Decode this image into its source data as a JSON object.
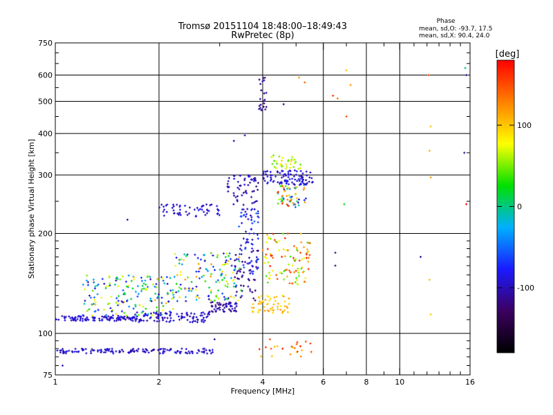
{
  "chart_data": {
    "type": "scatter",
    "title": "Tromsø 20151104 18:48:00–18:49:43",
    "subtitle": "RwPretec (8p)",
    "xlabel": "Frequency [MHz]",
    "ylabel": "Stationary phase Virtual Height [km]",
    "x_scale": "log",
    "y_scale": "log",
    "xlim": [
      1,
      16
    ],
    "ylim": [
      75,
      750
    ],
    "x_ticks": [
      {
        "value": 1,
        "label": "1"
      },
      {
        "value": 2,
        "label": "2"
      },
      {
        "value": 4,
        "label": "4"
      },
      {
        "value": 6,
        "label": "6"
      },
      {
        "value": 8,
        "label": "8"
      },
      {
        "value": 10,
        "label": "10"
      },
      {
        "value": 16,
        "label": "16"
      }
    ],
    "y_ticks": [
      {
        "value": 75,
        "label": "75"
      },
      {
        "value": 100,
        "label": "100"
      },
      {
        "value": 200,
        "label": "200"
      },
      {
        "value": 300,
        "label": "300"
      },
      {
        "value": 400,
        "label": "400"
      },
      {
        "value": 500,
        "label": "500"
      },
      {
        "value": 600,
        "label": "600"
      },
      {
        "value": 750,
        "label": "750"
      }
    ],
    "x_gridlines": [
      2,
      4,
      6,
      8,
      10
    ],
    "y_gridlines": [
      100,
      200,
      300,
      400,
      500,
      600
    ],
    "grid": true,
    "stats": {
      "title": "Phase",
      "line_o": "mean, sd,O: -93.7, 17.5",
      "line_x": "mean, sd,X:  90.4, 24.0"
    },
    "colorbar": {
      "label": "[deg]",
      "range": [
        -180,
        180
      ],
      "ticks": [
        {
          "value": 100,
          "label": "100"
        },
        {
          "value": 0,
          "label": "0"
        },
        {
          "value": -100,
          "label": "-100"
        }
      ],
      "colors": [
        "#000000",
        "#3c0060",
        "#1a1aff",
        "#00b0ff",
        "#00e000",
        "#ffff00",
        "#ff8000",
        "#ff0000"
      ]
    },
    "segments": [
      {
        "name": "",
        "x_range": [
          1.0,
          1.7
        ],
        "y_range": [
          109,
          113
        ],
        "phase_range": [
          -110,
          -80
        ],
        "count": 110
      },
      {
        "name": "",
        "x_range": [
          1.7,
          2.8
        ],
        "y_range": [
          108,
          116
        ],
        "phase_range": [
          -110,
          -80
        ],
        "count": 100
      },
      {
        "name": "",
        "x_range": [
          2.8,
          3.4
        ],
        "y_range": [
          116,
          125
        ],
        "phase_range": [
          -120,
          -90
        ],
        "count": 55
      },
      {
        "name": "",
        "x_range": [
          3.3,
          3.9
        ],
        "y_range": [
          125,
          180
        ],
        "phase_range": [
          -130,
          -100
        ],
        "count": 45
      },
      {
        "name": "",
        "x_range": [
          1.0,
          1.9
        ],
        "y_range": [
          87,
          90
        ],
        "phase_range": [
          -110,
          -80
        ],
        "count": 85
      },
      {
        "name": "",
        "x_range": [
          1.9,
          2.9
        ],
        "y_range": [
          87,
          90
        ],
        "phase_range": [
          -110,
          -80
        ],
        "count": 55
      },
      {
        "name": "",
        "x_range": [
          1.2,
          2.2
        ],
        "y_range": [
          113,
          150
        ],
        "phase_range": [
          -110,
          110
        ],
        "count": 170
      },
      {
        "name": "",
        "x_range": [
          2.2,
          3.5
        ],
        "y_range": [
          125,
          175
        ],
        "phase_range": [
          -110,
          120
        ],
        "count": 140
      },
      {
        "name": "",
        "x_range": [
          2.0,
          3.0
        ],
        "y_range": [
          225,
          245
        ],
        "phase_range": [
          -110,
          -80
        ],
        "count": 55
      },
      {
        "name": "",
        "x_range": [
          3.1,
          3.9
        ],
        "y_range": [
          240,
          300
        ],
        "phase_range": [
          -115,
          -85
        ],
        "count": 55
      },
      {
        "name": "",
        "x_range": [
          3.4,
          3.9
        ],
        "y_range": [
          150,
          240
        ],
        "phase_range": [
          -110,
          -50
        ],
        "count": 70
      },
      {
        "name": "",
        "x_range": [
          4.0,
          5.6
        ],
        "y_range": [
          280,
          310
        ],
        "phase_range": [
          -110,
          -70
        ],
        "count": 95
      },
      {
        "name": "",
        "x_range": [
          4.4,
          5.4
        ],
        "y_range": [
          240,
          280
        ],
        "phase_range": [
          -110,
          170
        ],
        "count": 60
      },
      {
        "name": "",
        "x_range": [
          4.0,
          5.5
        ],
        "y_range": [
          140,
          200
        ],
        "phase_range": [
          30,
          170
        ],
        "count": 100
      },
      {
        "name": "",
        "x_range": [
          3.7,
          4.8
        ],
        "y_range": [
          115,
          130
        ],
        "phase_range": [
          80,
          120
        ],
        "count": 55
      },
      {
        "name": "",
        "x_range": [
          4.2,
          5.2
        ],
        "y_range": [
          310,
          345
        ],
        "phase_range": [
          40,
          100
        ],
        "count": 35
      },
      {
        "name": "",
        "x_range": [
          3.9,
          4.1
        ],
        "y_range": [
          470,
          590
        ],
        "phase_range": [
          -120,
          -100
        ],
        "count": 22
      },
      {
        "name": "",
        "x_range": [
          3.9,
          5.6
        ],
        "y_range": [
          85,
          95
        ],
        "phase_range": [
          90,
          170
        ],
        "count": 22
      }
    ],
    "points": [
      {
        "x": 1.62,
        "y": 220,
        "phase": -105
      },
      {
        "x": 5.1,
        "y": 590,
        "phase": 120
      },
      {
        "x": 5.3,
        "y": 570,
        "phase": 140
      },
      {
        "x": 3.55,
        "y": 395,
        "phase": -100
      },
      {
        "x": 3.3,
        "y": 380,
        "phase": -100
      },
      {
        "x": 4.6,
        "y": 490,
        "phase": -110
      },
      {
        "x": 6.4,
        "y": 520,
        "phase": 160
      },
      {
        "x": 6.6,
        "y": 510,
        "phase": 130
      },
      {
        "x": 7.0,
        "y": 620,
        "phase": 100
      },
      {
        "x": 7.0,
        "y": 450,
        "phase": 150
      },
      {
        "x": 7.2,
        "y": 560,
        "phase": 120
      },
      {
        "x": 6.9,
        "y": 245,
        "phase": 20
      },
      {
        "x": 6.5,
        "y": 175,
        "phase": -110
      },
      {
        "x": 6.5,
        "y": 160,
        "phase": -120
      },
      {
        "x": 11.5,
        "y": 170,
        "phase": -110
      },
      {
        "x": 12.1,
        "y": 600,
        "phase": 150
      },
      {
        "x": 12.3,
        "y": 420,
        "phase": 100
      },
      {
        "x": 12.2,
        "y": 355,
        "phase": 110
      },
      {
        "x": 12.3,
        "y": 295,
        "phase": 115
      },
      {
        "x": 12.2,
        "y": 145,
        "phase": 100
      },
      {
        "x": 12.3,
        "y": 114,
        "phase": 95
      },
      {
        "x": 15.5,
        "y": 630,
        "phase": -5
      },
      {
        "x": 15.6,
        "y": 600,
        "phase": -110
      },
      {
        "x": 15.4,
        "y": 350,
        "phase": -115
      },
      {
        "x": 15.6,
        "y": 245,
        "phase": 175
      },
      {
        "x": 1.05,
        "y": 80,
        "phase": -100
      },
      {
        "x": 2.9,
        "y": 96,
        "phase": -110
      },
      {
        "x": 4.2,
        "y": 96,
        "phase": 150
      }
    ]
  }
}
